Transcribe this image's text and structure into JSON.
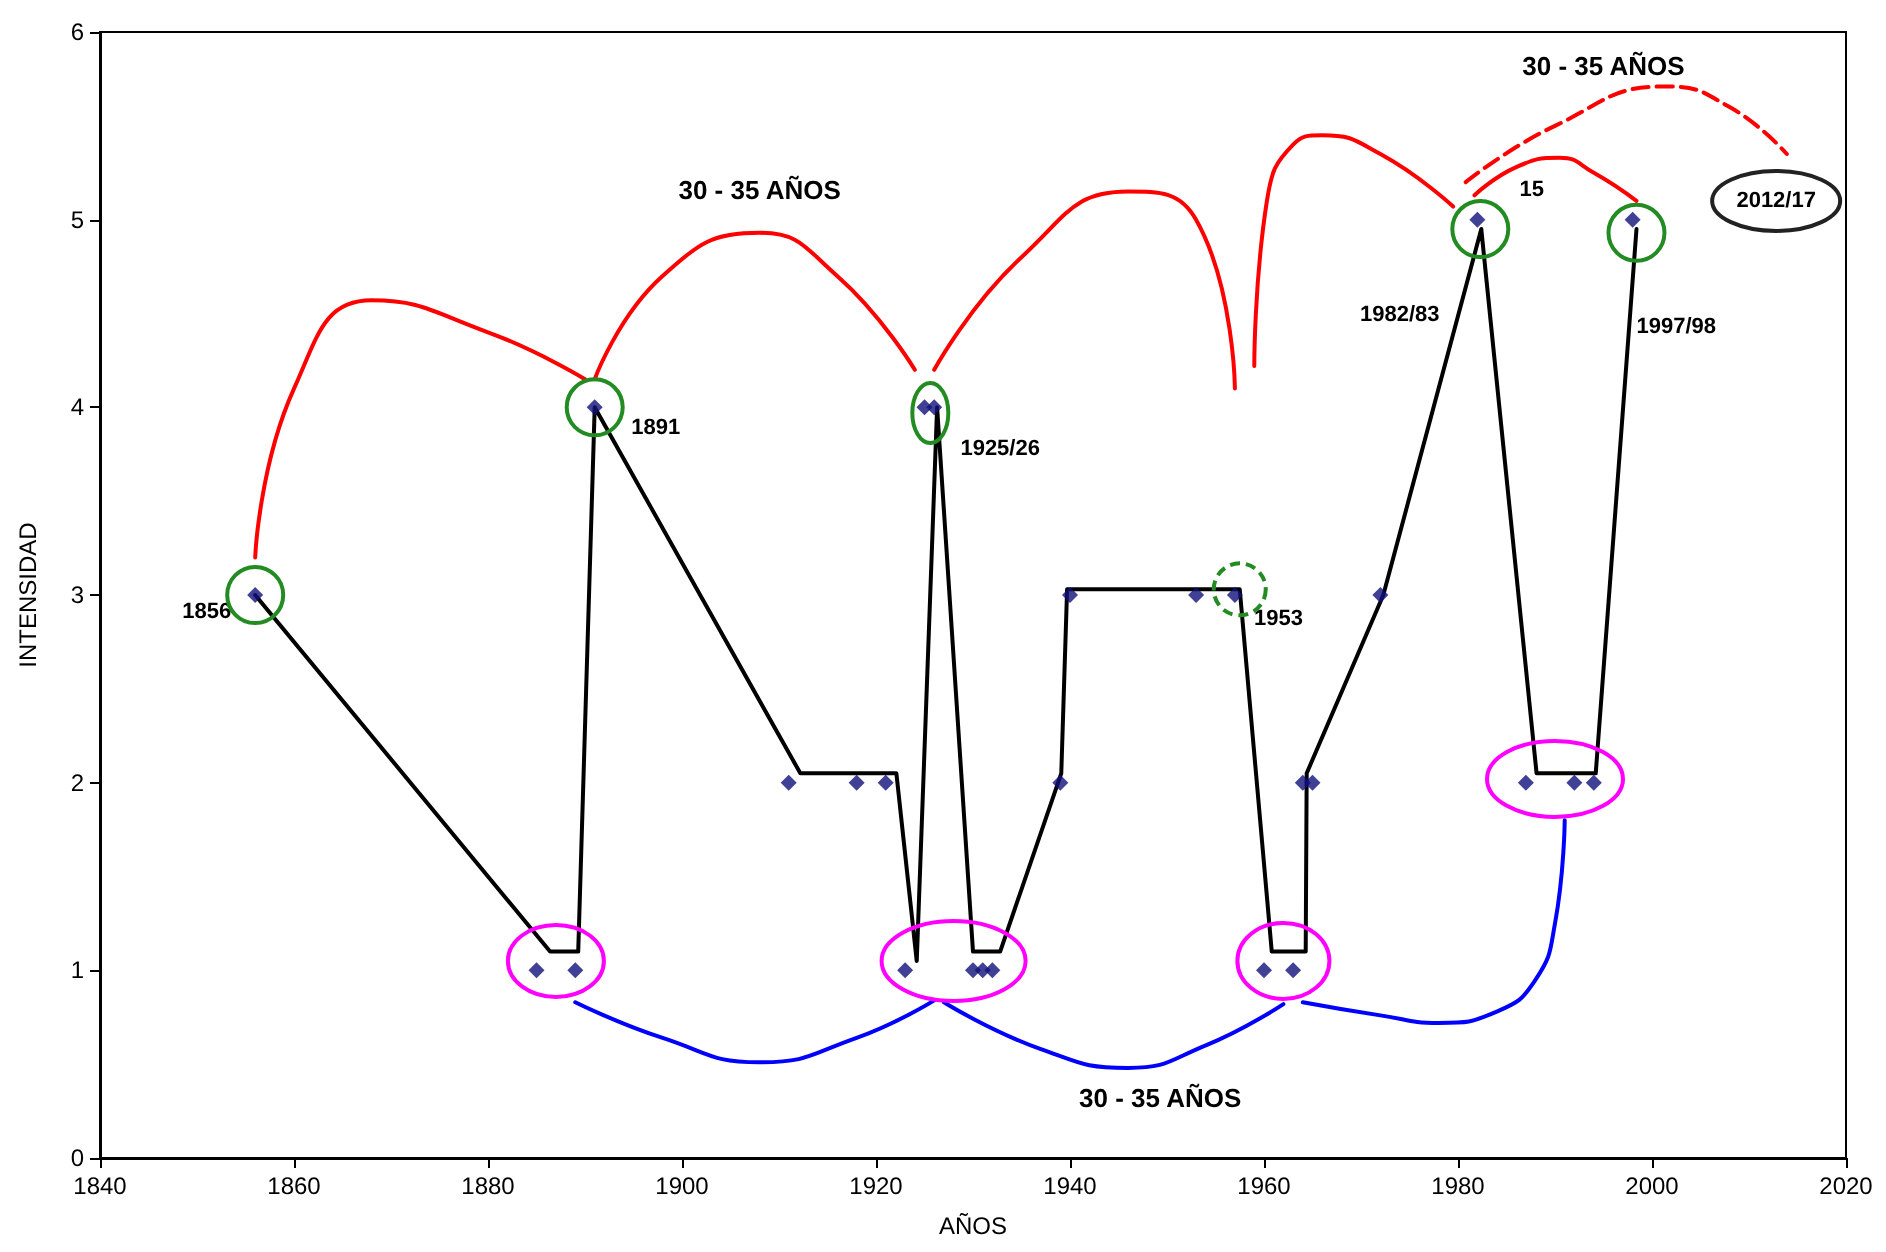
{
  "chart_data": {
    "type": "scatter",
    "xlabel": "AÑOS",
    "ylabel": "INTENSIDAD",
    "xlim": [
      1840,
      2020
    ],
    "xticks": [
      1840,
      1860,
      1880,
      1900,
      1920,
      1940,
      1960,
      1980,
      2000,
      2020
    ],
    "ylim": [
      0,
      6
    ],
    "yticks": [
      0,
      1,
      2,
      3,
      4,
      5,
      6
    ],
    "grid": false,
    "series": [
      {
        "marker": "diamond",
        "color": "#10107a",
        "x": [
          1856,
          1885,
          1889,
          1891,
          1911,
          1918,
          1921,
          1923,
          1925,
          1926,
          1930,
          1931,
          1932,
          1939,
          1940,
          1953,
          1957,
          1960,
          1963,
          1964,
          1965,
          1972,
          1982,
          1987,
          1992,
          1994,
          1998
        ],
        "values": [
          3,
          1,
          1,
          4,
          2,
          2,
          2,
          1,
          4,
          4,
          1,
          1,
          1,
          2,
          3,
          3,
          3,
          1,
          1,
          2,
          2,
          3,
          5,
          2,
          2,
          2,
          5
        ]
      },
      {
        "type": "line",
        "marker": "none",
        "line_style": "solid",
        "color": "#000000",
        "x": [
          1856,
          1886.4,
          1889.3,
          1891,
          1912.2,
          1922.1,
          1924.2,
          1926.3,
          1930,
          1932.8,
          1939.1,
          1939.7,
          1957.5,
          1960.8,
          1964.3,
          1964.4,
          1972.3,
          1982.4,
          1988.1,
          1994.2,
          1998.4
        ],
        "values": [
          3,
          1.1,
          1.1,
          4,
          2.05,
          2.05,
          1.05,
          4,
          1.1,
          1.1,
          2.05,
          3.03,
          3.03,
          1.1,
          1.1,
          2.05,
          3,
          4.95,
          2.05,
          2.05,
          4.95
        ]
      },
      {
        "type": "line",
        "marker": "none",
        "line_style": "solid",
        "color": "#ff0000",
        "x": [
          1856,
          1860,
          1868,
          1880,
          1890
        ],
        "values": [
          3.2,
          4.1,
          4.57,
          4.4,
          4.15
        ]
      },
      {
        "type": "line",
        "marker": "none",
        "line_style": "solid",
        "color": "#ff0000",
        "x": [
          1891,
          1898,
          1908,
          1916,
          1924
        ],
        "values": [
          4.15,
          4.7,
          4.93,
          4.7,
          4.2
        ]
      },
      {
        "type": "line",
        "marker": "none",
        "line_style": "solid",
        "color": "#ff0000",
        "x": [
          1926,
          1935,
          1946,
          1953,
          1957
        ],
        "values": [
          4.2,
          4.8,
          5.15,
          5.0,
          4.1
        ]
      },
      {
        "type": "line",
        "marker": "none",
        "line_style": "solid",
        "color": "#ff0000",
        "x": [
          1959,
          1960.3,
          1963,
          1966,
          1972,
          1979.5
        ],
        "values": [
          4.22,
          5.1,
          5.4,
          5.45,
          5.35,
          5.07
        ]
      },
      {
        "type": "line",
        "marker": "none",
        "line_style": "solid",
        "color": "#ff0000",
        "x": [
          1981.7,
          1986,
          1990.5,
          1994,
          1998.4
        ],
        "values": [
          5.13,
          5.28,
          5.33,
          5.25,
          5.1
        ]
      },
      {
        "type": "line",
        "marker": "none",
        "line_style": "dashed",
        "color": "#ff0000",
        "x": [
          1980.8,
          1990,
          2001.5,
          2008,
          2013.9
        ],
        "values": [
          5.2,
          5.5,
          5.71,
          5.6,
          5.35
        ]
      },
      {
        "type": "line",
        "marker": "none",
        "line_style": "solid",
        "color": "#0000ff",
        "x": [
          1889,
          1898,
          1908,
          1918,
          1926
        ],
        "values": [
          0.83,
          0.64,
          0.51,
          0.64,
          0.84
        ]
      },
      {
        "type": "line",
        "marker": "none",
        "line_style": "solid",
        "color": "#0000ff",
        "x": [
          1927,
          1937,
          1946,
          1954,
          1962
        ],
        "values": [
          0.83,
          0.58,
          0.48,
          0.6,
          0.82
        ]
      },
      {
        "type": "line",
        "marker": "none",
        "line_style": "solid",
        "color": "#0000ff",
        "x": [
          1964,
          1972,
          1978,
          1984,
          1988,
          1990,
          1991
        ],
        "values": [
          0.83,
          0.76,
          0.72,
          0.78,
          0.95,
          1.25,
          1.8
        ]
      }
    ],
    "annotations": [
      "1856",
      "1891",
      "1925/26",
      "1953",
      "1982/83",
      "1997/98",
      "15",
      "30 - 35 AÑOS",
      "30 - 35 AÑOS",
      "30 - 35 AÑOS",
      "2012/17"
    ]
  }
}
